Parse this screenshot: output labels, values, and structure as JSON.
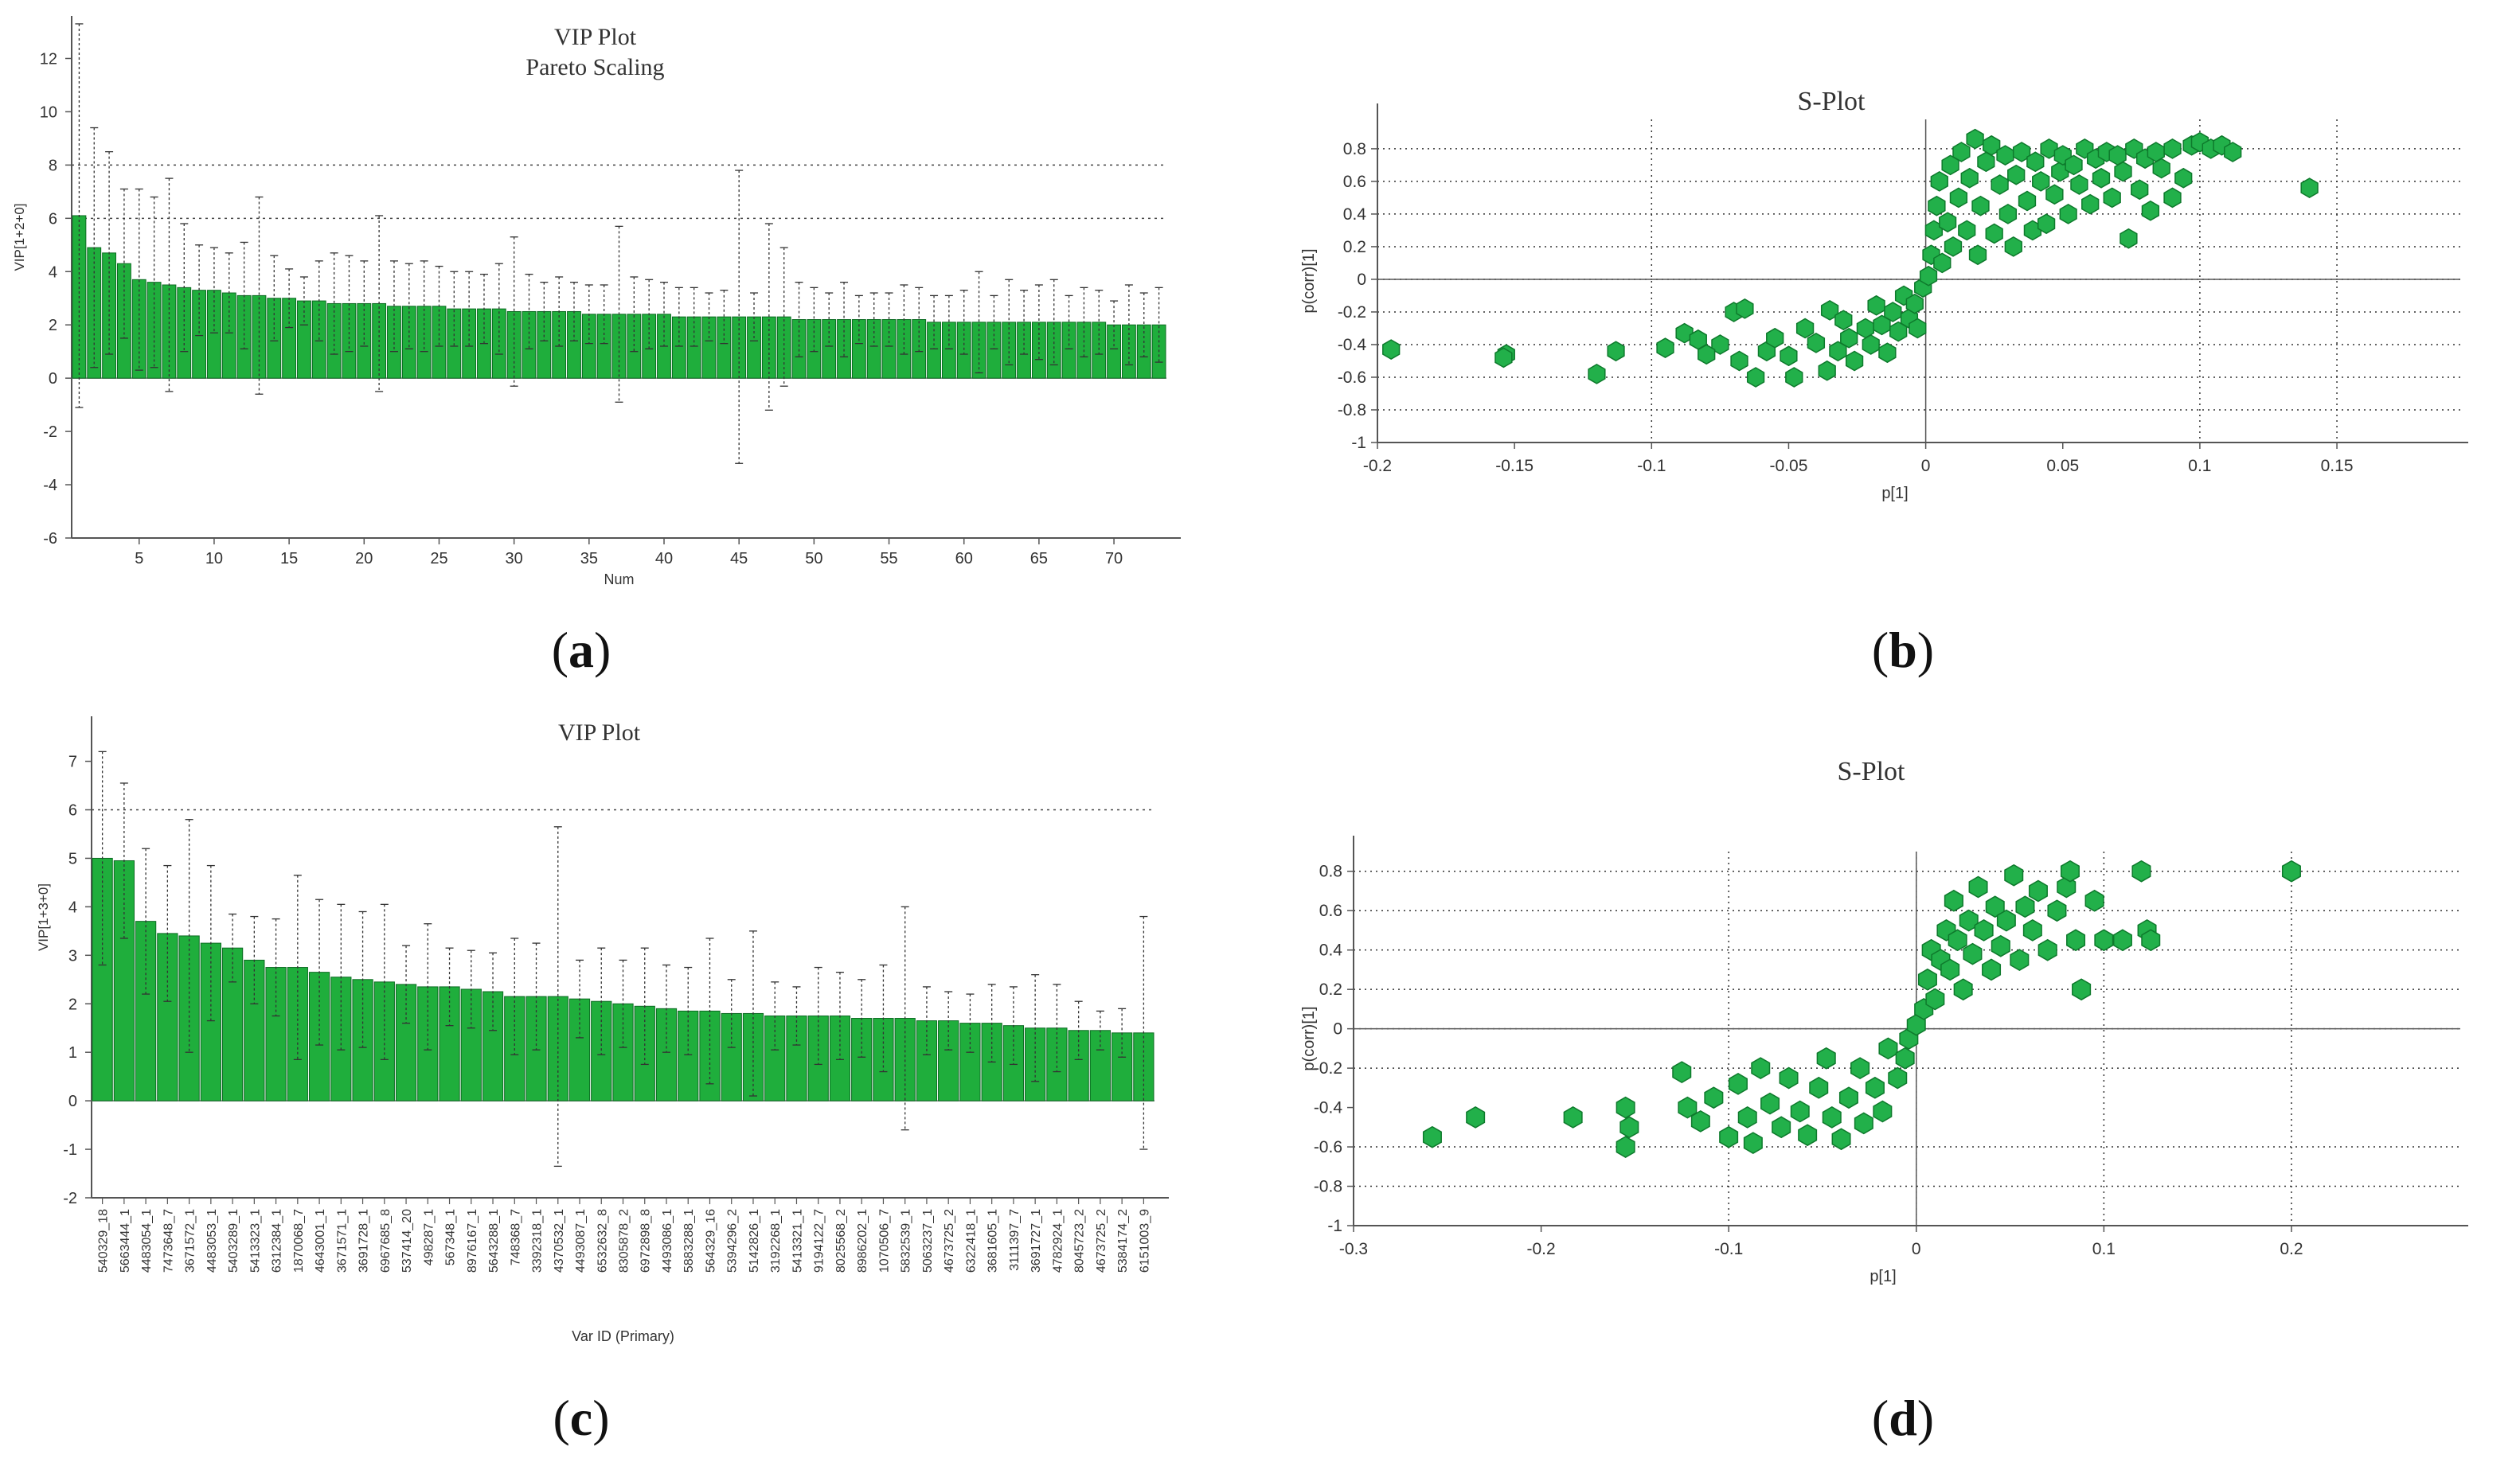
{
  "captions": {
    "a": {
      "open": "(",
      "letter": "a",
      "close": ")"
    },
    "b": {
      "open": "(",
      "letter": "b",
      "close": ")"
    },
    "c": {
      "open": "(",
      "letter": "c",
      "close": ")"
    },
    "d": {
      "open": "(",
      "letter": "d",
      "close": ")"
    }
  },
  "colors": {
    "bar": "#1fae3c",
    "bar_edge": "#0c6b22",
    "point": "#22b04a",
    "point_edge": "#0e7a2c"
  },
  "chart_data": [
    {
      "id": "a",
      "type": "bar",
      "title": "VIP Plot",
      "subtitle": "Pareto Scaling",
      "xlabel": "Num",
      "ylabel": "VIP[1+2+0]",
      "ylim": [
        -6,
        13
      ],
      "yticks": [
        -6,
        -4,
        -2,
        0,
        2,
        4,
        6,
        8,
        10,
        12
      ],
      "xticks": [
        5,
        10,
        15,
        20,
        25,
        30,
        35,
        40,
        45,
        50,
        55,
        60,
        65,
        70
      ],
      "grid_y": [
        6,
        8
      ],
      "values": [
        6.1,
        4.9,
        4.7,
        4.3,
        3.7,
        3.6,
        3.5,
        3.4,
        3.3,
        3.3,
        3.2,
        3.1,
        3.1,
        3.0,
        3.0,
        2.9,
        2.9,
        2.8,
        2.8,
        2.8,
        2.8,
        2.7,
        2.7,
        2.7,
        2.7,
        2.6,
        2.6,
        2.6,
        2.6,
        2.5,
        2.5,
        2.5,
        2.5,
        2.5,
        2.4,
        2.4,
        2.4,
        2.4,
        2.4,
        2.4,
        2.3,
        2.3,
        2.3,
        2.3,
        2.3,
        2.3,
        2.3,
        2.3,
        2.2,
        2.2,
        2.2,
        2.2,
        2.2,
        2.2,
        2.2,
        2.2,
        2.2,
        2.1,
        2.1,
        2.1,
        2.1,
        2.1,
        2.1,
        2.1,
        2.1,
        2.1,
        2.1,
        2.1,
        2.1,
        2.0,
        2.0,
        2.0,
        2.0
      ],
      "errors": [
        7.2,
        4.5,
        3.8,
        2.8,
        3.4,
        3.2,
        4.0,
        2.4,
        1.7,
        1.6,
        1.5,
        2.0,
        3.7,
        1.6,
        1.1,
        0.9,
        1.5,
        1.9,
        1.8,
        1.6,
        3.3,
        1.7,
        1.6,
        1.7,
        1.5,
        1.4,
        1.4,
        1.3,
        1.7,
        2.8,
        1.4,
        1.1,
        1.3,
        1.1,
        1.1,
        1.1,
        3.3,
        1.4,
        1.3,
        1.2,
        1.1,
        1.1,
        0.9,
        1.0,
        5.5,
        0.9,
        3.5,
        2.6,
        1.4,
        1.2,
        1.0,
        1.4,
        0.9,
        1.0,
        1.0,
        1.3,
        1.2,
        1.0,
        1.0,
        1.2,
        1.9,
        1.0,
        1.6,
        1.2,
        1.4,
        1.6,
        1.0,
        1.3,
        1.2,
        0.9,
        1.5,
        1.2,
        1.4
      ]
    },
    {
      "id": "b",
      "type": "scatter",
      "title": "S-Plot",
      "xlabel": "p[1]",
      "ylabel": "p(corr)[1]",
      "xlim": [
        -0.2,
        0.195
      ],
      "ylim": [
        -1.0,
        0.98
      ],
      "xticks": [
        -0.2,
        -0.15,
        -0.1,
        -0.05,
        0,
        0.05,
        0.1,
        0.15
      ],
      "xtick_labels": [
        "-0.2",
        "-0.15",
        "-0.1",
        "-0.05",
        "0",
        "0.05",
        "0.1",
        "0.15"
      ],
      "yticks": [
        -1,
        -0.8,
        -0.6,
        -0.4,
        -0.2,
        0,
        0.2,
        0.4,
        0.6,
        0.8
      ],
      "ytick_labels": [
        "-1",
        "-0.8",
        "-0.6",
        "-0.4",
        "-0.2",
        "0",
        "0.2",
        "0.4",
        "0.6",
        "0.8"
      ],
      "grid_x": [
        -0.1,
        0.1,
        0.15
      ],
      "grid_y": [
        0.8,
        0.6,
        0.4,
        0.2,
        0,
        -0.2,
        -0.4,
        -0.6,
        -0.8
      ],
      "points": [
        [
          -0.195,
          -0.43
        ],
        [
          -0.153,
          -0.46
        ],
        [
          -0.154,
          -0.48
        ],
        [
          -0.12,
          -0.58
        ],
        [
          -0.113,
          -0.44
        ],
        [
          -0.095,
          -0.42
        ],
        [
          -0.088,
          -0.33
        ],
        [
          -0.083,
          -0.37
        ],
        [
          -0.075,
          -0.4
        ],
        [
          -0.08,
          -0.46
        ],
        [
          -0.068,
          -0.5
        ],
        [
          -0.07,
          -0.2
        ],
        [
          -0.066,
          -0.18
        ],
        [
          -0.062,
          -0.6
        ],
        [
          -0.058,
          -0.44
        ],
        [
          -0.055,
          -0.36
        ],
        [
          -0.05,
          -0.47
        ],
        [
          -0.048,
          -0.6
        ],
        [
          -0.044,
          -0.3
        ],
        [
          -0.04,
          -0.39
        ],
        [
          -0.036,
          -0.56
        ],
        [
          -0.035,
          -0.19
        ],
        [
          -0.032,
          -0.44
        ],
        [
          -0.03,
          -0.25
        ],
        [
          -0.028,
          -0.36
        ],
        [
          -0.026,
          -0.5
        ],
        [
          -0.022,
          -0.3
        ],
        [
          -0.02,
          -0.4
        ],
        [
          -0.018,
          -0.16
        ],
        [
          -0.016,
          -0.28
        ],
        [
          -0.014,
          -0.45
        ],
        [
          -0.012,
          -0.2
        ],
        [
          -0.01,
          -0.32
        ],
        [
          -0.008,
          -0.1
        ],
        [
          -0.006,
          -0.24
        ],
        [
          -0.004,
          -0.15
        ],
        [
          -0.003,
          -0.3
        ],
        [
          -0.001,
          -0.05
        ],
        [
          0.001,
          0.02
        ],
        [
          0.002,
          0.15
        ],
        [
          0.003,
          0.3
        ],
        [
          0.004,
          0.45
        ],
        [
          0.005,
          0.6
        ],
        [
          0.006,
          0.1
        ],
        [
          0.008,
          0.35
        ],
        [
          0.009,
          0.7
        ],
        [
          0.01,
          0.2
        ],
        [
          0.012,
          0.5
        ],
        [
          0.013,
          0.78
        ],
        [
          0.015,
          0.3
        ],
        [
          0.016,
          0.62
        ],
        [
          0.018,
          0.86
        ],
        [
          0.019,
          0.15
        ],
        [
          0.02,
          0.45
        ],
        [
          0.022,
          0.72
        ],
        [
          0.024,
          0.82
        ],
        [
          0.025,
          0.28
        ],
        [
          0.027,
          0.58
        ],
        [
          0.029,
          0.76
        ],
        [
          0.03,
          0.4
        ],
        [
          0.032,
          0.2
        ],
        [
          0.033,
          0.64
        ],
        [
          0.035,
          0.78
        ],
        [
          0.037,
          0.48
        ],
        [
          0.039,
          0.3
        ],
        [
          0.04,
          0.72
        ],
        [
          0.042,
          0.6
        ],
        [
          0.044,
          0.34
        ],
        [
          0.045,
          0.8
        ],
        [
          0.047,
          0.52
        ],
        [
          0.049,
          0.66
        ],
        [
          0.05,
          0.76
        ],
        [
          0.052,
          0.4
        ],
        [
          0.054,
          0.7
        ],
        [
          0.056,
          0.58
        ],
        [
          0.058,
          0.8
        ],
        [
          0.06,
          0.46
        ],
        [
          0.062,
          0.74
        ],
        [
          0.064,
          0.62
        ],
        [
          0.066,
          0.78
        ],
        [
          0.068,
          0.5
        ],
        [
          0.07,
          0.76
        ],
        [
          0.072,
          0.66
        ],
        [
          0.074,
          0.25
        ],
        [
          0.076,
          0.8
        ],
        [
          0.078,
          0.55
        ],
        [
          0.08,
          0.74
        ],
        [
          0.082,
          0.42
        ],
        [
          0.084,
          0.78
        ],
        [
          0.086,
          0.68
        ],
        [
          0.09,
          0.8
        ],
        [
          0.094,
          0.62
        ],
        [
          0.09,
          0.5
        ],
        [
          0.097,
          0.82
        ],
        [
          0.1,
          0.84
        ],
        [
          0.104,
          0.8
        ],
        [
          0.108,
          0.82
        ],
        [
          0.112,
          0.78
        ],
        [
          0.14,
          0.56
        ]
      ]
    },
    {
      "id": "c",
      "type": "bar",
      "title": "VIP Plot",
      "xlabel": "Var ID (Primary)",
      "ylabel": "VIP[1+3+0]",
      "ylim": [
        -2,
        7.6
      ],
      "yticks": [
        -2,
        -1,
        0,
        1,
        2,
        3,
        4,
        5,
        6,
        7
      ],
      "grid_y": [
        6
      ],
      "categories": [
        "540329_18",
        "5663444_1",
        "4483054_1",
        "7473648_7",
        "3671572_1",
        "4483053_1",
        "5403289_1",
        "5413323_1",
        "6312384_1",
        "1870068_7",
        "4643001_1",
        "3671571_1",
        "3691728_1",
        "6967685_8",
        "537414_20",
        "498287_1",
        "567348_1",
        "8976167_1",
        "5643288_1",
        "748368_7",
        "3392318_1",
        "4370532_1",
        "4493087_1",
        "6532632_8",
        "8305878_2",
        "6972898_8",
        "4493086_1",
        "5883288_1",
        "564329_16",
        "5394296_2",
        "5142826_1",
        "3192268_1",
        "5413321_1",
        "9194122_7",
        "8025568_2",
        "8986202_1",
        "1070506_7",
        "5832539_1",
        "5063237_1",
        "4673725_2",
        "6322418_1",
        "3681605_1",
        "3111397_7",
        "3691727_1",
        "4782924_1",
        "8045723_2",
        "4673725_2",
        "5384174_2",
        "6151003_9"
      ],
      "values": [
        5.0,
        4.95,
        3.7,
        3.45,
        3.4,
        3.25,
        3.15,
        2.9,
        2.75,
        2.75,
        2.65,
        2.55,
        2.5,
        2.45,
        2.4,
        2.35,
        2.35,
        2.3,
        2.25,
        2.15,
        2.15,
        2.15,
        2.1,
        2.05,
        2.0,
        1.95,
        1.9,
        1.85,
        1.85,
        1.8,
        1.8,
        1.75,
        1.75,
        1.75,
        1.75,
        1.7,
        1.7,
        1.7,
        1.65,
        1.65,
        1.6,
        1.6,
        1.55,
        1.5,
        1.5,
        1.45,
        1.45,
        1.4,
        1.4
      ],
      "errors": [
        2.2,
        1.6,
        1.5,
        1.4,
        2.4,
        1.6,
        0.7,
        0.9,
        1.0,
        1.9,
        1.5,
        1.5,
        1.4,
        1.6,
        0.8,
        1.3,
        0.8,
        0.8,
        0.8,
        1.2,
        1.1,
        3.5,
        0.8,
        1.1,
        0.9,
        1.2,
        0.9,
        0.9,
        1.5,
        0.7,
        1.7,
        0.7,
        0.6,
        1.0,
        0.9,
        0.8,
        1.1,
        2.3,
        0.7,
        0.6,
        0.6,
        0.8,
        0.8,
        1.1,
        0.9,
        0.6,
        0.4,
        0.5,
        2.4
      ]
    },
    {
      "id": "d",
      "type": "scatter",
      "title": "S-Plot",
      "xlabel": "p[1]",
      "ylabel": "p(corr)[1]",
      "xlim": [
        -0.3,
        0.29
      ],
      "ylim": [
        -1.0,
        0.9
      ],
      "xticks": [
        -0.3,
        -0.2,
        -0.1,
        0,
        0.1,
        0.2
      ],
      "xtick_labels": [
        "-0.3",
        "-0.2",
        "-0.1",
        "0",
        "0.1",
        "0.2"
      ],
      "yticks": [
        -1,
        -0.8,
        -0.6,
        -0.4,
        -0.2,
        0,
        0.2,
        0.4,
        0.6,
        0.8
      ],
      "ytick_labels": [
        "-1",
        "-0.8",
        "-0.6",
        "-0.4",
        "-0.2",
        "0",
        "0.2",
        "0.4",
        "0.6",
        "0.8"
      ],
      "grid_x": [
        -0.1,
        0,
        0.1,
        0.2
      ],
      "grid_y": [
        0.8,
        0.6,
        0.4,
        0.2,
        0,
        -0.2,
        -0.6,
        -0.8
      ],
      "points": [
        [
          -0.258,
          -0.55
        ],
        [
          -0.235,
          -0.45
        ],
        [
          -0.183,
          -0.45
        ],
        [
          -0.155,
          -0.6
        ],
        [
          -0.153,
          -0.5
        ],
        [
          -0.155,
          -0.4
        ],
        [
          -0.125,
          -0.22
        ],
        [
          -0.122,
          -0.4
        ],
        [
          -0.115,
          -0.47
        ],
        [
          -0.108,
          -0.35
        ],
        [
          -0.1,
          -0.55
        ],
        [
          -0.095,
          -0.28
        ],
        [
          -0.09,
          -0.45
        ],
        [
          -0.087,
          -0.58
        ],
        [
          -0.083,
          -0.2
        ],
        [
          -0.078,
          -0.38
        ],
        [
          -0.072,
          -0.5
        ],
        [
          -0.068,
          -0.25
        ],
        [
          -0.062,
          -0.42
        ],
        [
          -0.058,
          -0.54
        ],
        [
          -0.052,
          -0.3
        ],
        [
          -0.048,
          -0.15
        ],
        [
          -0.045,
          -0.45
        ],
        [
          -0.04,
          -0.56
        ],
        [
          -0.036,
          -0.35
        ],
        [
          -0.03,
          -0.2
        ],
        [
          -0.028,
          -0.48
        ],
        [
          -0.022,
          -0.3
        ],
        [
          -0.018,
          -0.42
        ],
        [
          -0.015,
          -0.1
        ],
        [
          -0.01,
          -0.25
        ],
        [
          -0.006,
          -0.15
        ],
        [
          -0.004,
          -0.05
        ],
        [
          0.0,
          0.02
        ],
        [
          0.004,
          0.1
        ],
        [
          0.006,
          0.25
        ],
        [
          0.008,
          0.4
        ],
        [
          0.01,
          0.15
        ],
        [
          0.013,
          0.35
        ],
        [
          0.016,
          0.5
        ],
        [
          0.018,
          0.3
        ],
        [
          0.02,
          0.65
        ],
        [
          0.022,
          0.45
        ],
        [
          0.025,
          0.2
        ],
        [
          0.028,
          0.55
        ],
        [
          0.03,
          0.38
        ],
        [
          0.033,
          0.72
        ],
        [
          0.036,
          0.5
        ],
        [
          0.04,
          0.3
        ],
        [
          0.042,
          0.62
        ],
        [
          0.045,
          0.42
        ],
        [
          0.048,
          0.55
        ],
        [
          0.052,
          0.78
        ],
        [
          0.055,
          0.35
        ],
        [
          0.058,
          0.62
        ],
        [
          0.062,
          0.5
        ],
        [
          0.065,
          0.7
        ],
        [
          0.07,
          0.4
        ],
        [
          0.075,
          0.6
        ],
        [
          0.08,
          0.72
        ],
        [
          0.082,
          0.8
        ],
        [
          0.085,
          0.45
        ],
        [
          0.088,
          0.2
        ],
        [
          0.095,
          0.65
        ],
        [
          0.1,
          0.45
        ],
        [
          0.11,
          0.45
        ],
        [
          0.12,
          0.8
        ],
        [
          0.123,
          0.5
        ],
        [
          0.125,
          0.45
        ],
        [
          0.2,
          0.8
        ]
      ]
    }
  ]
}
